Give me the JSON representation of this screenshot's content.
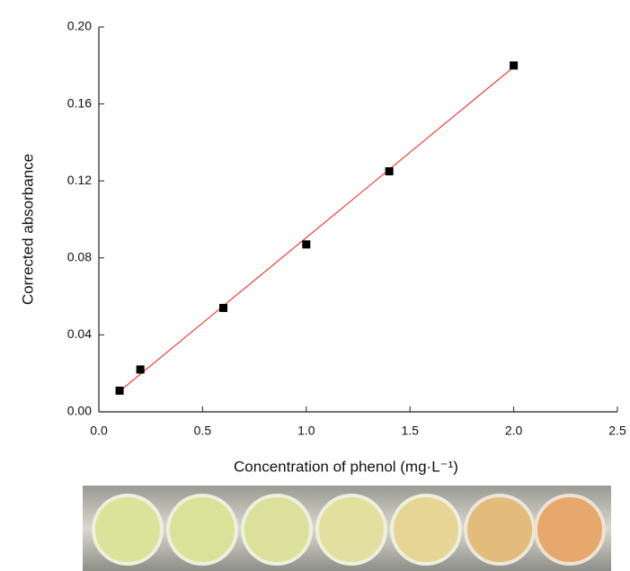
{
  "chart_data": {
    "type": "scatter",
    "x_label": "Concentration of phenol  (mg·L⁻¹)",
    "y_label": "Corrected absorbance",
    "xlim": [
      0,
      2.5
    ],
    "ylim": [
      0,
      0.2
    ],
    "xticks": [
      {
        "value": 0,
        "label": "0.0"
      },
      {
        "value": 0.5,
        "label": "0.5"
      },
      {
        "value": 1,
        "label": "1.0"
      },
      {
        "value": 1.5,
        "label": "1.5"
      },
      {
        "value": 2,
        "label": "2.0"
      },
      {
        "value": 2.5,
        "label": "2.5"
      }
    ],
    "yticks": [
      {
        "value": 0,
        "label": "0.00"
      },
      {
        "value": 0.04,
        "label": "0.04"
      },
      {
        "value": 0.08,
        "label": "0.08"
      },
      {
        "value": 0.12,
        "label": "0.12"
      },
      {
        "value": 0.16,
        "label": "0.16"
      },
      {
        "value": 0.2,
        "label": "0.20"
      }
    ],
    "series": [
      {
        "type": "scatter",
        "color": "#000000",
        "x": [
          0.1,
          0.2,
          0.6,
          1.0,
          1.4,
          2.0
        ],
        "values": [
          0.011,
          0.022,
          0.054,
          0.087,
          0.125,
          0.18
        ]
      },
      {
        "type": "line",
        "color": "#e8413c",
        "x": [
          0.1,
          2.0
        ],
        "values": [
          0.0107,
          0.1792
        ]
      }
    ]
  }
}
